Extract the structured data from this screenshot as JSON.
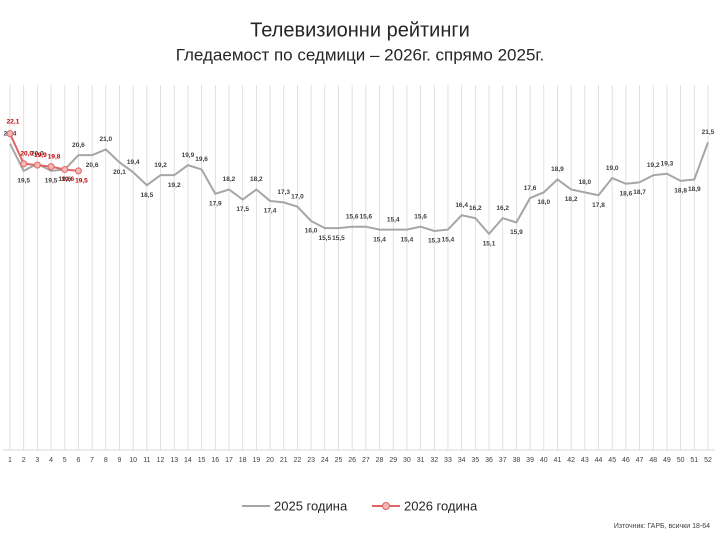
{
  "chart_data": {
    "type": "line",
    "title": "Телевизионни рейтинги",
    "subtitle": "Гледаемост по седмици – 2026г. спрямо 2025г.",
    "source": "Източник: ГАРБ, всички 18-64",
    "categories": [
      "1",
      "2",
      "3",
      "4",
      "5",
      "6",
      "7",
      "8",
      "9",
      "10",
      "11",
      "12",
      "13",
      "14",
      "15",
      "16",
      "17",
      "18",
      "19",
      "20",
      "21",
      "22",
      "23",
      "24",
      "25",
      "26",
      "27",
      "28",
      "29",
      "30",
      "31",
      "32",
      "33",
      "34",
      "35",
      "36",
      "37",
      "38",
      "39",
      "40",
      "41",
      "42",
      "43",
      "44",
      "45",
      "46",
      "47",
      "48",
      "49",
      "50",
      "51",
      "52"
    ],
    "ylim": [
      0,
      25.5
    ],
    "grid": true,
    "legend": "bottom",
    "series": [
      {
        "name": "2025 година",
        "color": "#a6a6a6",
        "marker": false,
        "values": [
          21.4,
          19.5,
          20.0,
          19.5,
          19.6,
          20.6,
          20.6,
          21.0,
          20.1,
          19.4,
          18.5,
          19.2,
          19.2,
          19.9,
          19.6,
          17.9,
          18.2,
          17.5,
          18.2,
          17.4,
          17.3,
          17.0,
          16.0,
          15.5,
          15.5,
          15.6,
          15.6,
          15.4,
          15.4,
          15.4,
          15.6,
          15.3,
          15.4,
          16.4,
          16.2,
          15.1,
          16.2,
          15.9,
          17.6,
          18.0,
          18.9,
          18.2,
          18.0,
          17.8,
          19.0,
          18.6,
          18.7,
          19.2,
          19.3,
          18.8,
          18.9,
          21.5
        ],
        "value_labels": [
          "21,4",
          "19,5",
          "20,0",
          "19,5",
          "19,6",
          "20,6",
          "20,6",
          "21,0",
          "20,1",
          "19,4",
          "18,5",
          "19,2",
          "19,2",
          "19,9",
          "19,6",
          "17,9",
          "18,2",
          "17,5",
          "18,2",
          "17,4",
          "17,3",
          "17,0",
          "16,0",
          "15,5",
          "15,5",
          "15,6",
          "15,6",
          "15,4",
          "15,4",
          "15,4",
          "15,6",
          "15,3",
          "15,4",
          "16,4",
          "16,2",
          "15,1",
          "16,2",
          "15,9",
          "17,6",
          "18,0",
          "18,9",
          "18,2",
          "18,0",
          "17,8",
          "19,0",
          "18,6",
          "18,7",
          "19,2",
          "19,3",
          "18,8",
          "18,9",
          "21,5"
        ]
      },
      {
        "name": "2026 година",
        "color": "#e06666",
        "marker": true,
        "values": [
          22.1,
          20.0,
          19.9,
          19.8,
          19.6,
          19.5,
          null,
          null,
          null,
          null,
          null,
          null,
          null,
          null,
          null,
          null,
          null,
          null,
          null,
          null,
          null,
          null,
          null,
          null,
          null,
          null,
          null,
          null,
          null,
          null,
          null,
          null,
          null,
          null,
          null,
          null,
          null,
          null,
          null,
          null,
          null,
          null,
          null,
          null,
          null,
          null,
          null,
          null,
          null,
          null,
          null,
          null
        ],
        "value_labels": [
          "22,1",
          "20,0",
          "19,9",
          "19,8",
          "19,6",
          "19,5",
          null,
          null,
          null,
          null,
          null,
          null,
          null,
          null,
          null,
          null,
          null,
          null,
          null,
          null,
          null,
          null,
          null,
          null,
          null,
          null,
          null,
          null,
          null,
          null,
          null,
          null,
          null,
          null,
          null,
          null,
          null,
          null,
          null,
          null,
          null,
          null,
          null,
          null,
          null,
          null,
          null,
          null,
          null,
          null,
          null,
          null
        ]
      }
    ]
  }
}
